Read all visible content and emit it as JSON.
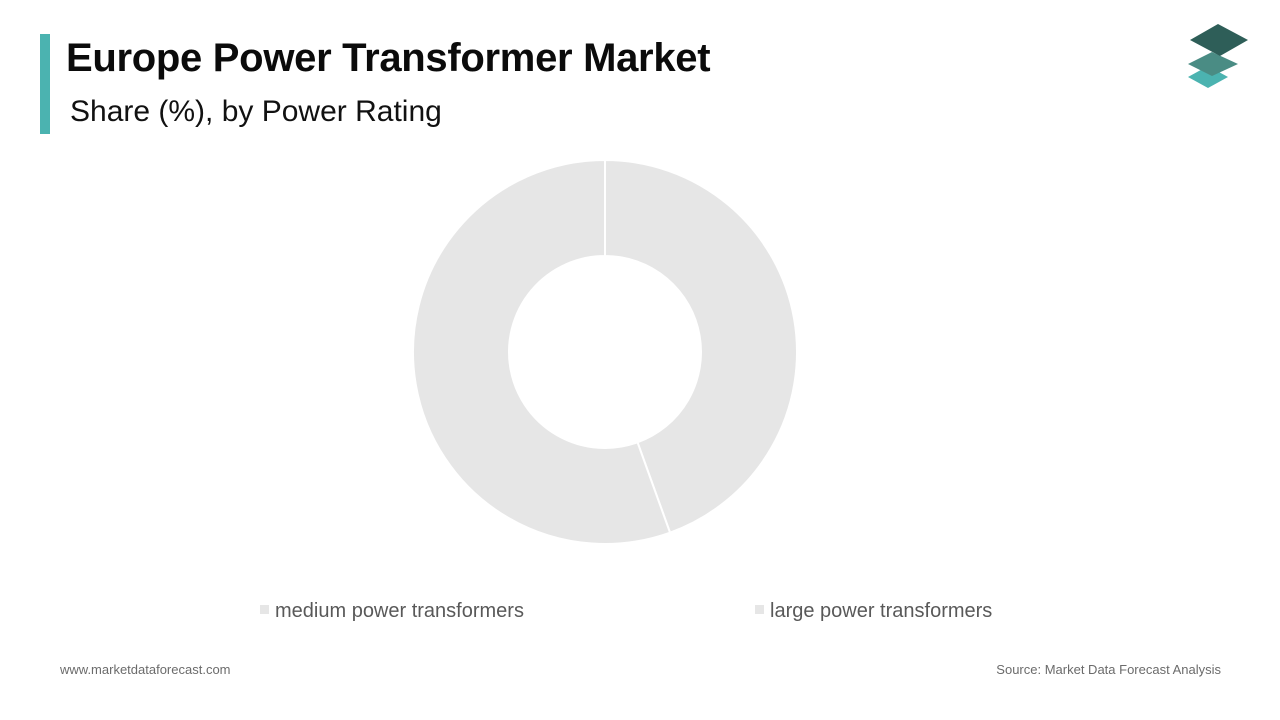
{
  "header": {
    "title": "Europe Power Transformer Market",
    "subtitle": "Share (%), by Power Rating",
    "accent_color": "#4bb3b0"
  },
  "logo": {
    "icon": "stacked-layers-logo-icon",
    "colors": [
      "#2e5e58",
      "#4a8c84",
      "#4bb3b0"
    ]
  },
  "chart_data": {
    "type": "pie",
    "donut": true,
    "categories": [
      "medium power transformers",
      "large power transformers"
    ],
    "values": [
      44.5,
      55.5
    ],
    "colors": [
      "#e6e6e6",
      "#e6e6e6"
    ],
    "legend_position": "bottom"
  },
  "footer": {
    "website": "www.marketdataforecast.com",
    "source": "Source: Market Data Forecast Analysis"
  }
}
